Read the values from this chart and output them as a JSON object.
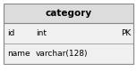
{
  "title": "category",
  "header_bg": "#dcdcdc",
  "body_bg": "#f0f0f0",
  "border_color": "#888888",
  "title_fontsize": 7.5,
  "cell_fontsize": 6.5,
  "rows": [
    {
      "col1": "id",
      "col2": "int",
      "col3": "PK"
    },
    {
      "col1": "name",
      "col2": "varchar(128)",
      "col3": ""
    }
  ],
  "fig_width": 1.53,
  "fig_height": 0.8
}
